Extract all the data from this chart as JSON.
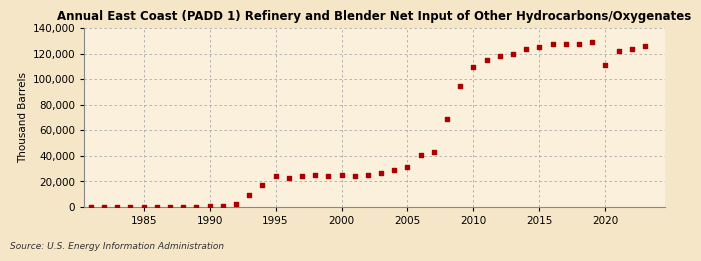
{
  "title": "Annual East Coast (PADD 1) Refinery and Blender Net Input of Other Hydrocarbons/Oxygenates",
  "ylabel": "Thousand Barrels",
  "source": "Source: U.S. Energy Information Administration",
  "background_color": "#f5e6c8",
  "plot_bg_color": "#faf0dc",
  "marker_color": "#aa0000",
  "grid_color": "#aaaaaa",
  "years": [
    1981,
    1982,
    1983,
    1984,
    1985,
    1986,
    1987,
    1988,
    1989,
    1990,
    1991,
    1992,
    1993,
    1994,
    1995,
    1996,
    1997,
    1998,
    1999,
    2000,
    2001,
    2002,
    2003,
    2004,
    2005,
    2006,
    2007,
    2008,
    2009,
    2010,
    2011,
    2012,
    2013,
    2014,
    2015,
    2016,
    2017,
    2018,
    2019,
    2020,
    2021,
    2022,
    2023
  ],
  "values": [
    300,
    150,
    250,
    350,
    200,
    150,
    200,
    300,
    300,
    500,
    1000,
    2500,
    9500,
    17000,
    24000,
    23000,
    24000,
    25000,
    24000,
    25000,
    24000,
    25000,
    27000,
    29000,
    31000,
    41000,
    43000,
    69000,
    95000,
    110000,
    115000,
    118000,
    120000,
    124000,
    125000,
    128000,
    128000,
    128000,
    129000,
    111000,
    122000,
    124000,
    126000
  ],
  "ylim": [
    0,
    140000
  ],
  "yticks": [
    0,
    20000,
    40000,
    60000,
    80000,
    100000,
    120000,
    140000
  ],
  "xlim": [
    1980.5,
    2024.5
  ],
  "xticks": [
    1985,
    1990,
    1995,
    2000,
    2005,
    2010,
    2015,
    2020
  ]
}
